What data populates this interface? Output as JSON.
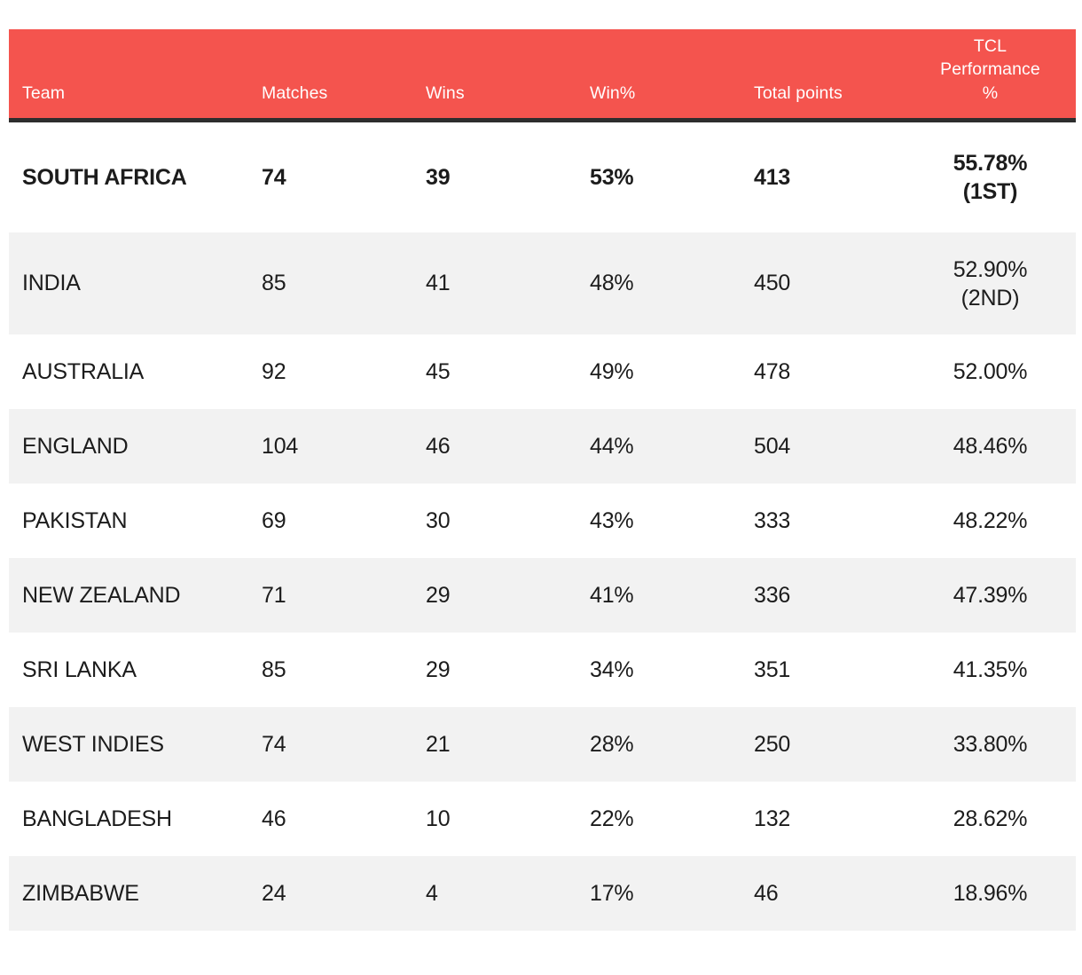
{
  "colors": {
    "header_bg": "#f4544e",
    "header_text": "#ffffff",
    "header_underline": "#2d2d2d",
    "row_bg": "#ffffff",
    "row_alt_bg": "#f2f2f2",
    "body_text": "#1c1c1c"
  },
  "header": {
    "team": "Team",
    "matches": "Matches",
    "wins": "Wins",
    "win_pct": "Win%",
    "total_points": "Total points",
    "tcl_performance": "TCL Performance %"
  },
  "rows": [
    {
      "team": "SOUTH AFRICA",
      "matches": "74",
      "wins": "39",
      "win_pct": "53%",
      "total_points": "413",
      "tcl_main": "55.78%",
      "tcl_rank": "(1ST)"
    },
    {
      "team": "INDIA",
      "matches": "85",
      "wins": "41",
      "win_pct": "48%",
      "total_points": "450",
      "tcl_main": "52.90%",
      "tcl_rank": "(2ND)"
    },
    {
      "team": "AUSTRALIA",
      "matches": "92",
      "wins": "45",
      "win_pct": "49%",
      "total_points": "478",
      "tcl_main": "52.00%",
      "tcl_rank": ""
    },
    {
      "team": "ENGLAND",
      "matches": "104",
      "wins": "46",
      "win_pct": "44%",
      "total_points": "504",
      "tcl_main": "48.46%",
      "tcl_rank": ""
    },
    {
      "team": "PAKISTAN",
      "matches": "69",
      "wins": "30",
      "win_pct": "43%",
      "total_points": "333",
      "tcl_main": "48.22%",
      "tcl_rank": ""
    },
    {
      "team": "NEW ZEALAND",
      "matches": "71",
      "wins": "29",
      "win_pct": "41%",
      "total_points": "336",
      "tcl_main": "47.39%",
      "tcl_rank": ""
    },
    {
      "team": "SRI LANKA",
      "matches": "85",
      "wins": "29",
      "win_pct": "34%",
      "total_points": "351",
      "tcl_main": "41.35%",
      "tcl_rank": ""
    },
    {
      "team": "WEST INDIES",
      "matches": "74",
      "wins": "21",
      "win_pct": "28%",
      "total_points": "250",
      "tcl_main": "33.80%",
      "tcl_rank": ""
    },
    {
      "team": "BANGLADESH",
      "matches": "46",
      "wins": "10",
      "win_pct": "22%",
      "total_points": "132",
      "tcl_main": "28.62%",
      "tcl_rank": ""
    },
    {
      "team": "ZIMBABWE",
      "matches": "24",
      "wins": "4",
      "win_pct": "17%",
      "total_points": "46",
      "tcl_main": "18.96%",
      "tcl_rank": ""
    }
  ],
  "chart_data": {
    "type": "table",
    "title": "TCL Performance % by team",
    "columns": [
      "Team",
      "Matches",
      "Wins",
      "Win%",
      "Total points",
      "TCL Performance %"
    ],
    "rows": [
      [
        "SOUTH AFRICA",
        74,
        39,
        "53%",
        413,
        "55.78% (1ST)"
      ],
      [
        "INDIA",
        85,
        41,
        "48%",
        450,
        "52.90% (2ND)"
      ],
      [
        "AUSTRALIA",
        92,
        45,
        "49%",
        478,
        "52.00%"
      ],
      [
        "ENGLAND",
        104,
        46,
        "44%",
        504,
        "48.46%"
      ],
      [
        "PAKISTAN",
        69,
        30,
        "43%",
        333,
        "48.22%"
      ],
      [
        "NEW ZEALAND",
        71,
        29,
        "41%",
        336,
        "47.39%"
      ],
      [
        "SRI LANKA",
        85,
        29,
        "34%",
        351,
        "41.35%"
      ],
      [
        "WEST INDIES",
        74,
        21,
        "28%",
        250,
        "33.80%"
      ],
      [
        "BANGLADESH",
        46,
        10,
        "22%",
        132,
        "28.62%"
      ],
      [
        "ZIMBABWE",
        24,
        4,
        "17%",
        46,
        "18.96%"
      ]
    ],
    "layout_hints": {
      "header_background": "#f4544e",
      "alternating_row_shading": true,
      "first_row_bold": true,
      "ranks_annotated_for_top_two": true
    }
  }
}
